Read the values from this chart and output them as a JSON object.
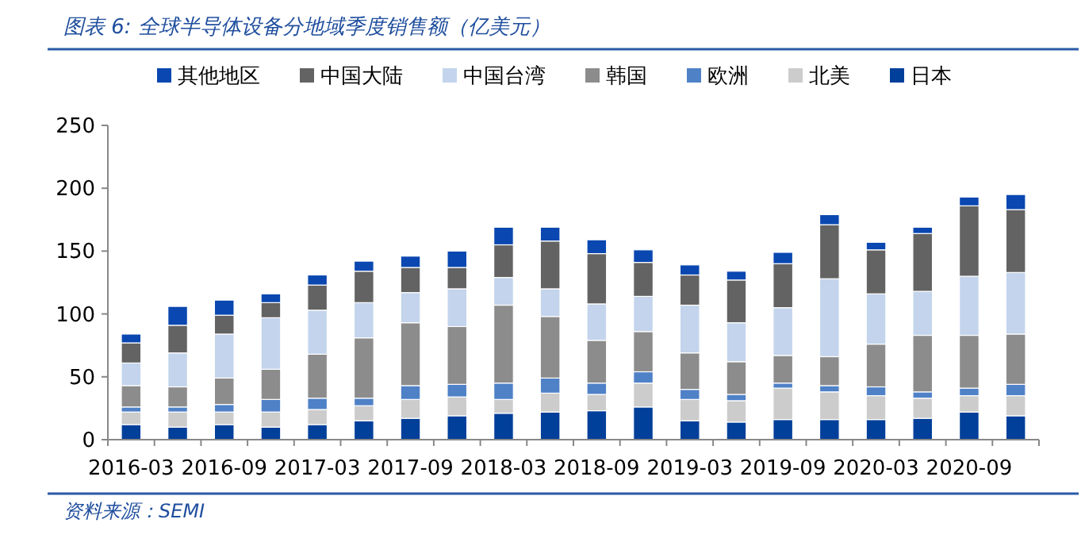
{
  "chart_data": {
    "type": "bar",
    "title": "图表 6:  全球半导体设备分地域季度销售额（亿美元）",
    "categories": [
      "2016-03",
      null,
      "2016-09",
      null,
      "2017-03",
      null,
      "2017-09",
      null,
      "2018-03",
      null,
      "2018-09",
      null,
      "2019-03",
      null,
      "2019-09",
      null,
      "2020-03",
      null,
      "2020-09",
      null
    ],
    "stacked": true,
    "legend": "top",
    "grid": false,
    "ylim": [
      0,
      250
    ],
    "yticks": [
      0,
      50,
      100,
      150,
      200,
      250
    ],
    "series": [
      {
        "name": "日本",
        "color": "#003f9a",
        "values": [
          12,
          10,
          12,
          10,
          12,
          15,
          17,
          19,
          21,
          22,
          23,
          26,
          15,
          14,
          16,
          16,
          16,
          17,
          22,
          19
        ]
      },
      {
        "name": "北美",
        "color": "#cccccc",
        "values": [
          10,
          12,
          10,
          12,
          12,
          12,
          15,
          15,
          11,
          15,
          13,
          19,
          17,
          17,
          25,
          22,
          19,
          16,
          13,
          16
        ]
      },
      {
        "name": "欧洲",
        "color": "#4f81c7",
        "values": [
          4,
          4,
          6,
          10,
          9,
          6,
          11,
          10,
          13,
          12,
          9,
          9,
          8,
          5,
          4,
          5,
          7,
          5,
          6,
          9
        ]
      },
      {
        "name": "韩国",
        "color": "#8c8c8c",
        "values": [
          17,
          16,
          21,
          24,
          35,
          48,
          50,
          46,
          62,
          49,
          34,
          32,
          29,
          26,
          22,
          23,
          34,
          45,
          42,
          40
        ]
      },
      {
        "name": "中国台湾",
        "color": "#c3d4ec",
        "values": [
          18,
          27,
          35,
          41,
          35,
          28,
          24,
          30,
          22,
          22,
          29,
          28,
          38,
          31,
          38,
          62,
          40,
          35,
          47,
          49
        ]
      },
      {
        "name": "中国大陆",
        "color": "#636363",
        "values": [
          16,
          22,
          15,
          12,
          20,
          25,
          20,
          17,
          26,
          38,
          40,
          27,
          24,
          34,
          35,
          43,
          35,
          46,
          56,
          50
        ]
      },
      {
        "name": "其他地区",
        "color": "#0a47b0",
        "values": [
          7,
          15,
          12,
          7,
          8,
          8,
          9,
          13,
          14,
          11,
          11,
          10,
          8,
          7,
          9,
          8,
          6,
          5,
          7,
          12
        ]
      }
    ],
    "annotations": [
      "资料来源：SEMI"
    ]
  }
}
